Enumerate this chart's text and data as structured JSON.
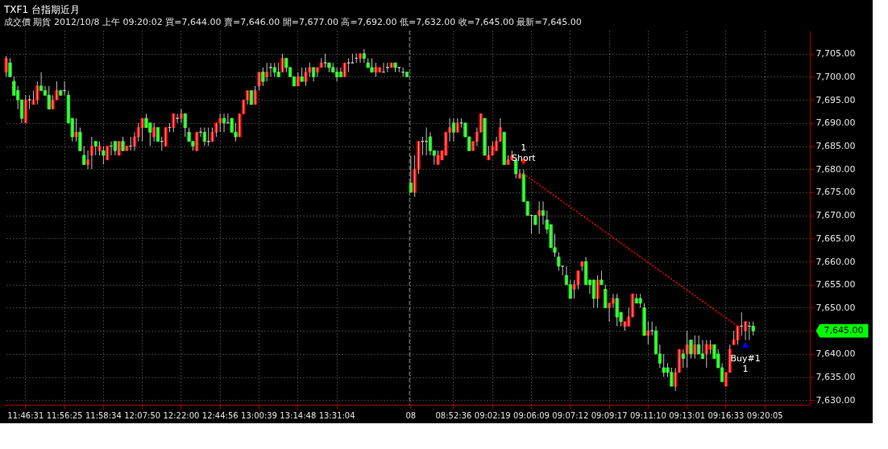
{
  "chart_data": {
    "type": "candlestick",
    "title": "TXF1 台指期近月",
    "subtitle": "成交價 期貨 2012/10/8 上午 09:20:02 買=7,644.00 賣=7,646.00 開=7,677.00 高=7,692.00 低=7,632.00 收=7,645.00 最新=7,645.00",
    "categories": [
      null,
      null,
      null,
      null,
      null,
      "11:46:31",
      null,
      null,
      null,
      null,
      null,
      null,
      null,
      null,
      null,
      "11:56:25",
      null,
      null,
      null,
      null,
      null,
      null,
      null,
      null,
      null,
      "11:58:34",
      null,
      null,
      null,
      null,
      null,
      null,
      null,
      null,
      null,
      "12:07:50",
      null,
      null,
      null,
      null,
      null,
      null,
      null,
      null,
      null,
      "12:22:00",
      null,
      null,
      null,
      null,
      null,
      null,
      null,
      null,
      null,
      "12:44:56",
      null,
      null,
      null,
      null,
      null,
      null,
      null,
      null,
      null,
      "13:00:39",
      null,
      null,
      null,
      null,
      null,
      null,
      null,
      null,
      null,
      "13:14:48",
      null,
      null,
      null,
      null,
      null,
      null,
      null,
      null,
      null,
      "13:31:04",
      null,
      null,
      null,
      null,
      null,
      null,
      null,
      null,
      null,
      null,
      null,
      null,
      null,
      null,
      null,
      null,
      null,
      null,
      "08",
      null,
      null,
      null,
      null,
      null,
      null,
      null,
      null,
      null,
      null,
      "08:52:36",
      null,
      null,
      null,
      null,
      null,
      null,
      null,
      null,
      null,
      "09:02:19",
      null,
      null,
      null,
      null,
      null,
      null,
      null,
      null,
      null,
      "09:06:09",
      null,
      null,
      null,
      null,
      null,
      null,
      null,
      null,
      null,
      "09:07:12",
      null,
      null,
      null,
      null,
      null,
      null,
      null,
      null,
      null,
      "09:09:17",
      null,
      null,
      null,
      null,
      null,
      null,
      null,
      null,
      null,
      "09:11:10",
      null,
      null,
      null,
      null,
      null,
      null,
      null,
      null,
      null,
      "09:13:01",
      null,
      null,
      null,
      null,
      null,
      null,
      null,
      null,
      null,
      "09:16:33",
      null,
      null,
      null,
      null,
      null,
      null,
      null,
      null,
      null,
      "09:20:05",
      null,
      null,
      null,
      null,
      null,
      null,
      null,
      null,
      null,
      null,
      null
    ],
    "ohlc": [
      [
        7701,
        7704.5,
        7700,
        7704
      ],
      [
        7703,
        7704,
        7700,
        7700
      ],
      [
        7699,
        7700,
        7696,
        7696
      ],
      [
        7697,
        7698,
        7693,
        7695
      ],
      [
        7695,
        7695,
        7690,
        7691
      ],
      [
        7690,
        7696,
        7690,
        7695
      ],
      [
        7695,
        7696,
        7693,
        7695
      ],
      [
        7694,
        7697,
        7694,
        7695
      ],
      [
        7695,
        7699,
        7694,
        7698
      ],
      [
        7698,
        7701,
        7697,
        7697
      ],
      [
        7697,
        7698,
        7696,
        7696
      ],
      [
        7696,
        7698,
        7693,
        7693
      ],
      [
        7693,
        7696,
        7693,
        7695
      ],
      [
        7695,
        7699,
        7695,
        7697
      ],
      [
        7697,
        7697,
        7696,
        7696
      ],
      [
        7697,
        7699,
        7696,
        7697
      ],
      [
        7696,
        7697,
        7690,
        7690
      ],
      [
        7691,
        7691,
        7686,
        7687
      ],
      [
        7687,
        7691,
        7686,
        7688
      ],
      [
        7688,
        7689,
        7684,
        7684
      ],
      [
        7683,
        7685,
        7681,
        7681
      ],
      [
        7681,
        7684,
        7680,
        7682
      ],
      [
        7683,
        7687,
        7680,
        7685
      ],
      [
        7686,
        7686,
        7683,
        7685
      ],
      [
        7684,
        7686,
        7683,
        7685
      ],
      [
        7684,
        7685,
        7681,
        7683
      ],
      [
        7682,
        7685,
        7682,
        7685
      ],
      [
        7685,
        7686,
        7683,
        7685
      ],
      [
        7686,
        7686,
        7683,
        7684
      ],
      [
        7683,
        7686,
        7683,
        7686
      ],
      [
        7686,
        7687,
        7684,
        7684
      ],
      [
        7684,
        7685,
        7684,
        7685
      ],
      [
        7685,
        7687,
        7684,
        7685
      ],
      [
        7685,
        7688,
        7684,
        7687
      ],
      [
        7687,
        7690,
        7686,
        7689
      ],
      [
        7689,
        7691,
        7686,
        7691
      ],
      [
        7691,
        7692,
        7689,
        7689
      ],
      [
        7690,
        7690,
        7685,
        7688
      ],
      [
        7687,
        7690,
        7686,
        7689
      ],
      [
        7689,
        7689,
        7686,
        7686
      ],
      [
        7686,
        7687,
        7684,
        7686
      ],
      [
        7685,
        7689,
        7685,
        7689
      ],
      [
        7689,
        7690,
        7688,
        7689
      ],
      [
        7689,
        7692,
        7688,
        7692
      ],
      [
        7691,
        7692,
        7690,
        7691
      ],
      [
        7691,
        7693,
        7690,
        7692
      ],
      [
        7692,
        7692,
        7687,
        7689
      ],
      [
        7688,
        7689,
        7686,
        7686
      ],
      [
        7686,
        7686,
        7684,
        7685
      ],
      [
        7684,
        7688,
        7684,
        7688
      ],
      [
        7688,
        7689,
        7687,
        7688
      ],
      [
        7688,
        7689,
        7685,
        7686
      ],
      [
        7686,
        7689,
        7685,
        7686
      ],
      [
        7686,
        7689,
        7686,
        7688
      ],
      [
        7688,
        7690,
        7687,
        7690
      ],
      [
        7690,
        7692,
        7688,
        7691
      ],
      [
        7691,
        7692,
        7688,
        7690
      ],
      [
        7690,
        7692,
        7690,
        7690
      ],
      [
        7691,
        7691,
        7688,
        7688
      ],
      [
        7688,
        7690,
        7686,
        7687
      ],
      [
        7687,
        7692,
        7687,
        7692
      ],
      [
        7692,
        7695,
        7692,
        7695
      ],
      [
        7695,
        7697,
        7694,
        7697
      ],
      [
        7697,
        7697,
        7694,
        7694
      ],
      [
        7694,
        7698,
        7694,
        7697
      ],
      [
        7698,
        7701,
        7697,
        7701
      ],
      [
        7701,
        7702,
        7698,
        7699
      ],
      [
        7700,
        7703,
        7699,
        7701
      ],
      [
        7702,
        7703,
        7700,
        7702
      ],
      [
        7702,
        7703,
        7700,
        7701
      ],
      [
        7701,
        7703,
        7700,
        7700
      ],
      [
        7701,
        7705,
        7701,
        7704
      ],
      [
        7704,
        7704,
        7701,
        7702
      ],
      [
        7702,
        7702,
        7700,
        7700
      ],
      [
        7700,
        7700,
        7698,
        7698
      ],
      [
        7698,
        7701,
        7698,
        7700
      ],
      [
        7700,
        7702,
        7699,
        7699
      ],
      [
        7699,
        7702,
        7698,
        7701
      ],
      [
        7701,
        7703,
        7700,
        7702
      ],
      [
        7702,
        7702,
        7699,
        7700
      ],
      [
        7701,
        7702,
        7700,
        7702
      ],
      [
        7702,
        7704,
        7702,
        7703
      ],
      [
        7703,
        7705,
        7702,
        7703
      ],
      [
        7703,
        7703,
        7701,
        7702
      ],
      [
        7702,
        7703,
        7701,
        7701
      ],
      [
        7701,
        7702,
        7699,
        7700
      ],
      [
        7701,
        7702,
        7700,
        7700
      ],
      [
        7700,
        7703,
        7700,
        7703
      ],
      [
        7703,
        7704,
        7701,
        7703
      ],
      [
        7703,
        7705,
        7703,
        7703
      ],
      [
        7704,
        7705,
        7703,
        7704
      ],
      [
        7704,
        7705,
        7703,
        7705
      ],
      [
        7705,
        7706,
        7703,
        7704
      ],
      [
        7703,
        7704,
        7702,
        7702
      ],
      [
        7702,
        7704,
        7701,
        7701
      ],
      [
        7701,
        7703,
        7700,
        7702
      ],
      [
        7701,
        7702,
        7701,
        7702
      ],
      [
        7701,
        7703,
        7701,
        7701
      ],
      [
        7702,
        7703,
        7701,
        7702
      ],
      [
        7702,
        7703,
        7702,
        7703
      ],
      [
        7703,
        7703,
        7701,
        7702
      ],
      [
        7702,
        7702,
        7701,
        7702
      ],
      [
        7701,
        7702,
        7700,
        7701
      ],
      [
        7701,
        7701,
        7700,
        7700
      ],
      [
        7677,
        7683,
        7675,
        7675
      ],
      [
        7675,
        7683,
        7674,
        7680
      ],
      [
        7680,
        7686,
        7679,
        7686
      ],
      [
        7686,
        7687,
        7683,
        7686
      ],
      [
        7686,
        7689,
        7683,
        7686
      ],
      [
        7687,
        7688,
        7683,
        7684
      ],
      [
        7684,
        7684,
        7681,
        7683
      ],
      [
        7681,
        7684,
        7681,
        7683
      ],
      [
        7682,
        7684,
        7682,
        7684
      ],
      [
        7683,
        7688,
        7683,
        7688
      ],
      [
        7688,
        7691,
        7686,
        7689
      ],
      [
        7690,
        7691,
        7686,
        7688
      ],
      [
        7688,
        7691,
        7688,
        7690
      ],
      [
        7690,
        7691,
        7689,
        7690
      ],
      [
        7690,
        7690,
        7687,
        7687
      ],
      [
        7687,
        7687,
        7684,
        7684
      ],
      [
        7684,
        7686,
        7684,
        7686
      ],
      [
        7686,
        7689,
        7685,
        7688
      ],
      [
        7688,
        7692,
        7688,
        7692
      ],
      [
        7691,
        7691,
        7683,
        7683
      ],
      [
        7682,
        7685,
        7682,
        7683
      ],
      [
        7683,
        7686,
        7683,
        7685
      ],
      [
        7684,
        7687,
        7684,
        7686
      ],
      [
        7686,
        7691,
        7686,
        7689
      ],
      [
        7688,
        7688,
        7681,
        7681
      ],
      [
        7681,
        7683,
        7681,
        7682
      ],
      [
        7682,
        7684,
        7682,
        7683
      ],
      [
        7682,
        7682,
        7678,
        7679
      ],
      [
        7678,
        7680,
        7678,
        7679
      ],
      [
        7679,
        7680,
        7673,
        7673
      ],
      [
        7673,
        7673,
        7670,
        7670
      ],
      [
        7670,
        7670,
        7666,
        7670
      ],
      [
        7670,
        7670,
        7668,
        7668
      ],
      [
        7670,
        7673,
        7666,
        7671
      ],
      [
        7671,
        7673,
        7668,
        7670
      ],
      [
        7669,
        7671,
        7666,
        7667
      ],
      [
        7668,
        7668,
        7663,
        7663
      ],
      [
        7663,
        7666,
        7661,
        7662
      ],
      [
        7661,
        7662,
        7658,
        7659
      ],
      [
        7659,
        7659,
        7657,
        7659
      ],
      [
        7657,
        7659,
        7655,
        7655
      ],
      [
        7655,
        7656,
        7652,
        7652
      ],
      [
        7654,
        7656,
        7652,
        7655
      ],
      [
        7655,
        7658,
        7654,
        7658
      ],
      [
        7659,
        7660,
        7658,
        7660
      ],
      [
        7660,
        7661,
        7655,
        7655
      ],
      [
        7656,
        7656,
        7653,
        7655
      ],
      [
        7656,
        7656,
        7650,
        7652
      ],
      [
        7652,
        7657,
        7650,
        7656
      ],
      [
        7656,
        7658,
        7655,
        7655
      ],
      [
        7654,
        7655,
        7650,
        7650
      ],
      [
        7650,
        7651,
        7647,
        7651
      ],
      [
        7651,
        7653,
        7650,
        7652
      ],
      [
        7652,
        7653,
        7646,
        7648
      ],
      [
        7649,
        7649,
        7646,
        7647
      ],
      [
        7646,
        7647,
        7645,
        7647
      ],
      [
        7646,
        7650,
        7646,
        7648
      ],
      [
        7648,
        7653,
        7648,
        7653
      ],
      [
        7652,
        7653,
        7651,
        7651
      ],
      [
        7652,
        7653,
        7650,
        7651
      ],
      [
        7650,
        7651,
        7644,
        7644
      ],
      [
        7644,
        7647,
        7642,
        7645
      ],
      [
        7645,
        7647,
        7644,
        7645
      ],
      [
        7645,
        7646,
        7640,
        7640
      ],
      [
        7640,
        7642,
        7637,
        7638
      ],
      [
        7637,
        7640,
        7635,
        7636
      ],
      [
        7637,
        7638,
        7635,
        7636
      ],
      [
        7636,
        7637,
        7633,
        7633
      ],
      [
        7633,
        7637,
        7632,
        7636
      ],
      [
        7636,
        7641,
        7636,
        7641
      ],
      [
        7640,
        7641,
        7637,
        7639
      ],
      [
        7640,
        7645,
        7637,
        7642
      ],
      [
        7643,
        7643,
        7639,
        7640
      ],
      [
        7640,
        7644,
        7639,
        7642
      ],
      [
        7642,
        7644,
        7640,
        7640
      ],
      [
        7640,
        7643,
        7639,
        7639
      ],
      [
        7640,
        7643,
        7637,
        7642
      ],
      [
        7641,
        7643,
        7640,
        7642
      ],
      [
        7642,
        7642,
        7639,
        7639
      ],
      [
        7640,
        7641,
        7637,
        7637
      ],
      [
        7637,
        7638,
        7634,
        7634
      ],
      [
        7633,
        7636,
        7633,
        7636
      ],
      [
        7636,
        7642,
        7636,
        7641
      ],
      [
        7642,
        7645,
        7642,
        7643
      ],
      [
        7643,
        7646,
        7642,
        7646
      ],
      [
        7646,
        7649,
        7644,
        7646
      ],
      [
        7645,
        7647,
        7643,
        7647
      ],
      [
        7646,
        7647,
        7643,
        7646
      ],
      [
        7646,
        7647,
        7644,
        7645
      ],
      null,
      null,
      null,
      null,
      null,
      null,
      null,
      null,
      null,
      null,
      null,
      null,
      null,
      null
    ],
    "colors": [
      "#ff0000",
      "#00ff00",
      "#00ff00",
      "#00ff00",
      "#00ff00",
      "#ff0000",
      "#c0c0c0",
      "#ff0000",
      "#ff0000",
      "#00ff00",
      "#00ff00",
      "#00ff00",
      "#ff0000",
      "#ff0000",
      "#00ff00",
      "#c0c0c0",
      "#00ff00",
      "#00ff00",
      "#ff0000",
      "#00ff00",
      "#00ff00",
      "#ff0000",
      "#ff0000",
      "#00ff00",
      "#ff0000",
      "#00ff00",
      "#ff0000",
      "#c0c0c0",
      "#00ff00",
      "#ff0000",
      "#00ff00",
      "#ff0000",
      "#c0c0c0",
      "#ff0000",
      "#ff0000",
      "#ff0000",
      "#00ff00",
      "#00ff00",
      "#ff0000",
      "#00ff00",
      "#c0c0c0",
      "#ff0000",
      "#c0c0c0",
      "#ff0000",
      "#c0c0c0",
      "#ff0000",
      "#00ff00",
      "#00ff00",
      "#00ff00",
      "#ff0000",
      "#c0c0c0",
      "#00ff00",
      "#c0c0c0",
      "#ff0000",
      "#ff0000",
      "#ff0000",
      "#00ff00",
      "#c0c0c0",
      "#00ff00",
      "#00ff00",
      "#ff0000",
      "#ff0000",
      "#ff0000",
      "#00ff00",
      "#ff0000",
      "#ff0000",
      "#00ff00",
      "#ff0000",
      "#c0c0c0",
      "#00ff00",
      "#00ff00",
      "#ff0000",
      "#00ff00",
      "#00ff00",
      "#00ff00",
      "#ff0000",
      "#00ff00",
      "#ff0000",
      "#ff0000",
      "#00ff00",
      "#ff0000",
      "#ff0000",
      "#c0c0c0",
      "#00ff00",
      "#00ff00",
      "#00ff00",
      "#00ff00",
      "#ff0000",
      "#c0c0c0",
      "#c0c0c0",
      "#c0c0c0",
      "#ff0000",
      "#00ff00",
      "#00ff00",
      "#00ff00",
      "#ff0000",
      "#ff0000",
      "#c0c0c0",
      "#c0c0c0",
      "#ff0000",
      "#00ff00",
      "#c0c0c0",
      "#c0c0c0",
      "#00ff00",
      "#00ff00",
      "#ff0000",
      "#ff0000",
      "#c0c0c0",
      "#c0c0c0",
      "#00ff00",
      "#00ff00",
      "#ff0000",
      "#ff0000",
      "#ff0000",
      "#ff0000",
      "#00ff00",
      "#ff0000",
      "#c0c0c0",
      "#00ff00",
      "#00ff00",
      "#ff0000",
      "#ff0000",
      "#ff0000",
      "#00ff00",
      "#ff0000",
      "#ff0000",
      "#ff0000",
      "#ff0000",
      "#00ff00",
      "#ff0000",
      "#ff0000",
      "#00ff00",
      "#ff0000",
      "#00ff00",
      "#00ff00",
      "#c0c0c0",
      "#00ff00",
      "#ff0000",
      "#00ff00",
      "#00ff00",
      "#00ff00",
      "#00ff00",
      "#00ff00",
      "#c0c0c0",
      "#00ff00",
      "#00ff00",
      "#ff0000",
      "#ff0000",
      "#ff0000",
      "#00ff00",
      "#00ff00",
      "#00ff00",
      "#ff0000",
      "#00ff00",
      "#00ff00",
      "#ff0000",
      "#ff0000",
      "#00ff00",
      "#00ff00",
      "#ff0000",
      "#ff0000",
      "#ff0000",
      "#00ff00",
      "#00ff00",
      "#00ff00",
      "#ff0000",
      "#c0c0c0",
      "#00ff00",
      "#00ff00",
      "#00ff00",
      "#00ff00",
      "#00ff00",
      "#ff0000",
      "#ff0000",
      "#00ff00",
      "#ff0000",
      "#00ff00",
      "#ff0000",
      "#00ff00",
      "#00ff00",
      "#ff0000",
      "#ff0000",
      "#00ff00",
      "#00ff00",
      "#00ff00",
      "#ff0000",
      "#ff0000",
      "#ff0000",
      "#ff0000",
      "#c0c0c0",
      "#ff0000",
      "#c0c0c0",
      "#00ff00",
      null,
      null,
      null,
      null,
      null,
      null,
      null,
      null,
      null,
      null,
      null,
      null,
      null,
      null
    ],
    "series": [
      {
        "type": "line",
        "color": "#ff0000",
        "line_style": "dotted",
        "values": [
          null,
          null,
          null,
          null,
          null,
          null,
          null,
          null,
          null,
          null,
          null,
          null,
          null,
          null,
          null,
          null,
          null,
          null,
          null,
          null,
          null,
          null,
          null,
          null,
          null,
          null,
          null,
          null,
          null,
          null,
          null,
          null,
          null,
          null,
          null,
          null,
          null,
          null,
          null,
          null,
          null,
          null,
          null,
          null,
          null,
          null,
          null,
          null,
          null,
          null,
          null,
          null,
          null,
          null,
          null,
          null,
          null,
          null,
          null,
          null,
          null,
          null,
          null,
          null,
          null,
          null,
          null,
          null,
          null,
          null,
          null,
          null,
          null,
          null,
          null,
          null,
          null,
          null,
          null,
          null,
          null,
          null,
          null,
          null,
          null,
          null,
          null,
          null,
          null,
          null,
          null,
          null,
          null,
          null,
          null,
          null,
          null,
          null,
          null,
          null,
          null,
          null,
          null,
          null,
          null,
          null,
          null,
          null,
          null,
          null,
          null,
          null,
          null,
          null,
          null,
          null,
          null,
          null,
          null,
          null,
          null,
          null,
          null,
          null,
          null,
          null,
          null,
          null,
          null,
          null,
          null,
          null,
          null,
          7679,
          null,
          null,
          null,
          null,
          null,
          null,
          null,
          null,
          null,
          null,
          null,
          null,
          null,
          null,
          null,
          null,
          null,
          null,
          null,
          null,
          null,
          null,
          null,
          null,
          null,
          null,
          null,
          null,
          null,
          null,
          null,
          null,
          null,
          null,
          null,
          null,
          null,
          null,
          null,
          null,
          null,
          null,
          null,
          null,
          null,
          null,
          null,
          null,
          null,
          null,
          null,
          null,
          null,
          null,
          7646,
          null,
          null,
          null,
          null,
          null,
          null,
          null,
          null,
          null,
          null,
          null,
          null,
          null,
          null,
          null,
          null,
          null,
          null
        ]
      },
      {
        "type": "scatter",
        "name": "1\nShort",
        "color": "#ff0000",
        "marker": "triangle-down",
        "values": [
          null,
          null,
          null,
          null,
          null,
          null,
          null,
          null,
          null,
          null,
          null,
          null,
          null,
          null,
          null,
          null,
          null,
          null,
          null,
          null,
          null,
          null,
          null,
          null,
          null,
          null,
          null,
          null,
          null,
          null,
          null,
          null,
          null,
          null,
          null,
          null,
          null,
          null,
          null,
          null,
          null,
          null,
          null,
          null,
          null,
          null,
          null,
          null,
          null,
          null,
          null,
          null,
          null,
          null,
          null,
          null,
          null,
          null,
          null,
          null,
          null,
          null,
          null,
          null,
          null,
          null,
          null,
          null,
          null,
          null,
          null,
          null,
          null,
          null,
          null,
          null,
          null,
          null,
          null,
          null,
          null,
          null,
          null,
          null,
          null,
          null,
          null,
          null,
          null,
          null,
          null,
          null,
          null,
          null,
          null,
          null,
          null,
          null,
          null,
          null,
          null,
          null,
          null,
          null,
          null,
          null,
          null,
          null,
          null,
          null,
          null,
          null,
          null,
          null,
          null,
          null,
          null,
          null,
          null,
          null,
          null,
          null,
          null,
          null,
          null,
          null,
          null,
          null,
          null,
          null,
          null,
          null,
          null,
          7681.5,
          null,
          null,
          null,
          null,
          null,
          null,
          null,
          null,
          null,
          null,
          null,
          null,
          null,
          null,
          null,
          null,
          null,
          null,
          null,
          null,
          null,
          null,
          null,
          null,
          null,
          null,
          null,
          null,
          null,
          null,
          null,
          null,
          null,
          null,
          null,
          null,
          null,
          null,
          null,
          null,
          null,
          null,
          null,
          null,
          null,
          null,
          null,
          null,
          null,
          null,
          null,
          null,
          null,
          null,
          null,
          null,
          null,
          null,
          null,
          null,
          null,
          null,
          null,
          null,
          null,
          null,
          null,
          null,
          null,
          null,
          null,
          null,
          null
        ]
      },
      {
        "type": "scatter",
        "name": "Buy#1\n1",
        "color": "#0000ff",
        "marker": "triangle-up",
        "values": [
          null,
          null,
          null,
          null,
          null,
          null,
          null,
          null,
          null,
          null,
          null,
          null,
          null,
          null,
          null,
          null,
          null,
          null,
          null,
          null,
          null,
          null,
          null,
          null,
          null,
          null,
          null,
          null,
          null,
          null,
          null,
          null,
          null,
          null,
          null,
          null,
          null,
          null,
          null,
          null,
          null,
          null,
          null,
          null,
          null,
          null,
          null,
          null,
          null,
          null,
          null,
          null,
          null,
          null,
          null,
          null,
          null,
          null,
          null,
          null,
          null,
          null,
          null,
          null,
          null,
          null,
          null,
          null,
          null,
          null,
          null,
          null,
          null,
          null,
          null,
          null,
          null,
          null,
          null,
          null,
          null,
          null,
          null,
          null,
          null,
          null,
          null,
          null,
          null,
          null,
          null,
          null,
          null,
          null,
          null,
          null,
          null,
          null,
          null,
          null,
          null,
          null,
          null,
          null,
          null,
          null,
          null,
          null,
          null,
          null,
          null,
          null,
          null,
          null,
          null,
          null,
          null,
          null,
          null,
          null,
          null,
          null,
          null,
          null,
          null,
          null,
          null,
          null,
          null,
          null,
          null,
          null,
          null,
          null,
          null,
          null,
          null,
          null,
          null,
          null,
          null,
          null,
          null,
          null,
          null,
          null,
          null,
          null,
          null,
          null,
          null,
          null,
          null,
          null,
          null,
          null,
          null,
          null,
          null,
          null,
          null,
          null,
          null,
          null,
          null,
          null,
          null,
          null,
          null,
          null,
          null,
          null,
          null,
          null,
          null,
          null,
          null,
          null,
          null,
          null,
          null,
          null,
          null,
          null,
          null,
          null,
          null,
          null,
          null,
          null,
          7642,
          null,
          null,
          null,
          null,
          null,
          null,
          null,
          null,
          null,
          null,
          null,
          null,
          null,
          null,
          null,
          null
        ]
      }
    ],
    "ylim": [
      7629,
      7710
    ],
    "yticks": [
      {
        "value": 7630,
        "label": "7,630.00"
      },
      {
        "value": 7635,
        "label": "7,635.00"
      },
      {
        "value": 7640,
        "label": "7,640.00"
      },
      {
        "value": 7645,
        "label": null
      },
      {
        "value": 7650,
        "label": "7,650.00"
      },
      {
        "value": 7655,
        "label": "7,655.00"
      },
      {
        "value": 7660,
        "label": "7,660.00"
      },
      {
        "value": 7665,
        "label": "7,665.00"
      },
      {
        "value": 7670,
        "label": "7,670.00"
      },
      {
        "value": 7675,
        "label": "7,675.00"
      },
      {
        "value": 7680,
        "label": "7,680.00"
      },
      {
        "value": 7685,
        "label": "7,685.00"
      },
      {
        "value": 7690,
        "label": "7,690.00"
      },
      {
        "value": 7695,
        "label": "7,695.00"
      },
      {
        "value": 7700,
        "label": "7,700.00"
      },
      {
        "value": 7705,
        "label": "7,705.00"
      }
    ],
    "ref_lines": [
      {
        "axis": "x",
        "value": "08",
        "line_style": "dashed",
        "color": "#909090"
      }
    ],
    "annotations": [
      "7,645.00"
    ],
    "grid": true
  }
}
